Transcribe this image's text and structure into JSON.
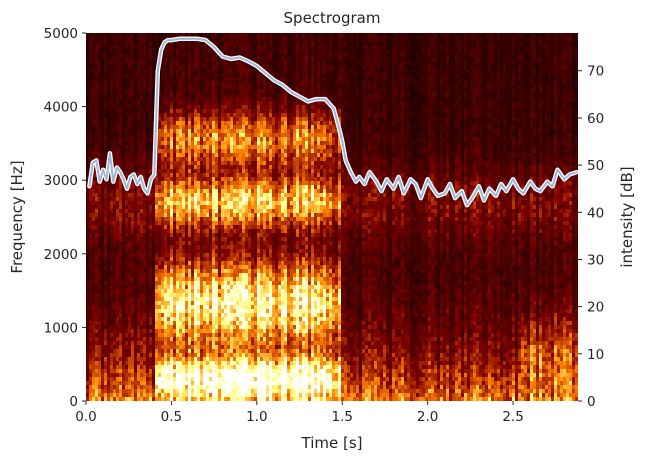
{
  "chart_data": {
    "type": "heatmap",
    "title": "Spectrogram",
    "xlabel": "Time [s]",
    "ylabel": "Frequency [Hz]",
    "y2label": "intensity [dB]",
    "xlim": [
      0,
      2.88
    ],
    "ylim": [
      0,
      5000
    ],
    "y2lim": [
      0,
      78
    ],
    "xticks": [
      0.0,
      0.5,
      1.0,
      1.5,
      2.0,
      2.5
    ],
    "xtick_labels": [
      "0.0",
      "0.5",
      "1.0",
      "1.5",
      "2.0",
      "2.5"
    ],
    "yticks": [
      0,
      1000,
      2000,
      3000,
      4000,
      5000
    ],
    "ytick_labels": [
      "0",
      "1000",
      "2000",
      "3000",
      "4000",
      "5000"
    ],
    "y2ticks": [
      0,
      10,
      20,
      30,
      40,
      50,
      60,
      70
    ],
    "y2tick_labels": [
      "0",
      "10",
      "20",
      "30",
      "40",
      "50",
      "60",
      "70"
    ],
    "grid": false,
    "colormap": "afmhot",
    "colors": {
      "line_outer": "#ffffff",
      "line_inner": "#9fb7d8",
      "text": "#262626"
    },
    "spectrogram": {
      "voiced_segment_s": [
        0.4,
        1.5
      ],
      "energy_bands_hz": [
        {
          "center": 300,
          "width": 250,
          "strength": 1.0
        },
        {
          "center": 1350,
          "width": 450,
          "strength": 0.8
        },
        {
          "center": 2700,
          "width": 300,
          "strength": 0.7
        },
        {
          "center": 3550,
          "width": 350,
          "strength": 0.5
        }
      ]
    },
    "series": [
      {
        "type": "line",
        "axis": "y2",
        "x": [
          0.02,
          0.04,
          0.06,
          0.08,
          0.1,
          0.12,
          0.14,
          0.16,
          0.18,
          0.2,
          0.22,
          0.24,
          0.26,
          0.28,
          0.3,
          0.32,
          0.34,
          0.36,
          0.38,
          0.4,
          0.42,
          0.44,
          0.46,
          0.48,
          0.5,
          0.55,
          0.6,
          0.65,
          0.7,
          0.75,
          0.8,
          0.85,
          0.9,
          0.95,
          1.0,
          1.05,
          1.1,
          1.15,
          1.2,
          1.25,
          1.3,
          1.35,
          1.4,
          1.45,
          1.48,
          1.5,
          1.52,
          1.55,
          1.58,
          1.6,
          1.63,
          1.66,
          1.7,
          1.73,
          1.76,
          1.8,
          1.83,
          1.86,
          1.9,
          1.93,
          1.96,
          2.0,
          2.03,
          2.06,
          2.1,
          2.13,
          2.16,
          2.2,
          2.23,
          2.26,
          2.3,
          2.33,
          2.36,
          2.4,
          2.43,
          2.46,
          2.5,
          2.53,
          2.56,
          2.6,
          2.63,
          2.66,
          2.7,
          2.73,
          2.76,
          2.8,
          2.83,
          2.87
        ],
        "y": [
          45.5,
          50.5,
          51.0,
          46.5,
          49.0,
          47.0,
          52.5,
          46.5,
          49.5,
          48.5,
          47.0,
          45.0,
          47.5,
          48.0,
          46.0,
          47.5,
          45.0,
          44.0,
          47.0,
          48.0,
          70.0,
          74.5,
          76.0,
          76.5,
          76.5,
          76.8,
          76.8,
          76.8,
          76.5,
          75.0,
          73.0,
          72.5,
          72.8,
          72.0,
          71.0,
          69.5,
          68.0,
          67.0,
          65.5,
          64.5,
          63.5,
          64.0,
          64.0,
          62.0,
          58.0,
          55.0,
          51.0,
          48.5,
          46.5,
          47.5,
          46.0,
          48.5,
          46.5,
          44.5,
          47.0,
          45.0,
          47.5,
          44.0,
          47.0,
          46.0,
          43.0,
          47.0,
          45.0,
          43.5,
          44.0,
          46.0,
          43.0,
          44.5,
          41.5,
          43.0,
          45.5,
          42.5,
          45.0,
          43.5,
          46.0,
          44.5,
          47.0,
          45.0,
          44.0,
          46.5,
          45.0,
          44.5,
          46.5,
          45.5,
          49.0,
          47.0,
          48.0,
          48.5
        ]
      }
    ]
  }
}
